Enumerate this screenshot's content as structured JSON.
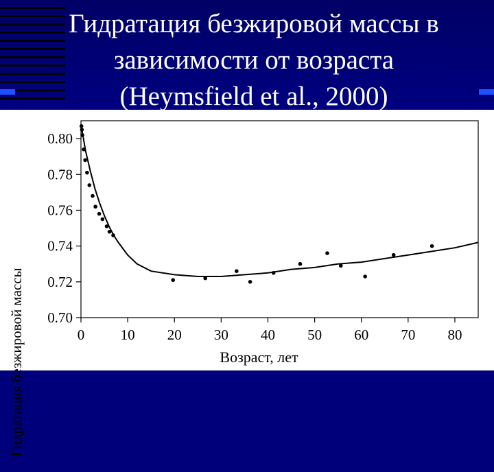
{
  "slide": {
    "title_lines": [
      "Гидратация безжировой массы в",
      "зависимости от возраста",
      "(Heymsfield et al., 2000)"
    ],
    "colors": {
      "background": "#00007a",
      "accent": "#1f4fff",
      "title_text": "#ffffff",
      "plot_background": "#ffffff",
      "ink": "#000000"
    }
  },
  "chart_data": {
    "type": "scatter",
    "xlabel": "Возраст, лет",
    "ylabel": "Гидратация безжировой массы",
    "xlim": [
      0,
      85
    ],
    "ylim": [
      0.7,
      0.81
    ],
    "x_ticks": [
      "0",
      "10",
      "20",
      "30",
      "40",
      "50",
      "60",
      "70",
      "80"
    ],
    "y_ticks": [
      "0.70",
      "0.72",
      "0.74",
      "0.76",
      "0.78",
      "0.80"
    ],
    "grid": false,
    "points": [
      {
        "x": 0.1,
        "y": 0.807
      },
      {
        "x": 0.2,
        "y": 0.805
      },
      {
        "x": 0.3,
        "y": 0.802
      },
      {
        "x": 0.6,
        "y": 0.794
      },
      {
        "x": 0.9,
        "y": 0.788
      },
      {
        "x": 1.3,
        "y": 0.781
      },
      {
        "x": 1.8,
        "y": 0.774
      },
      {
        "x": 2.5,
        "y": 0.768
      },
      {
        "x": 3.1,
        "y": 0.762
      },
      {
        "x": 3.9,
        "y": 0.758
      },
      {
        "x": 4.6,
        "y": 0.755
      },
      {
        "x": 5.5,
        "y": 0.751
      },
      {
        "x": 6.1,
        "y": 0.748
      },
      {
        "x": 6.9,
        "y": 0.746
      },
      {
        "x": 19.7,
        "y": 0.721
      },
      {
        "x": 26.6,
        "y": 0.722
      },
      {
        "x": 33.3,
        "y": 0.726
      },
      {
        "x": 36.2,
        "y": 0.72
      },
      {
        "x": 41.2,
        "y": 0.725
      },
      {
        "x": 46.9,
        "y": 0.73
      },
      {
        "x": 52.7,
        "y": 0.736
      },
      {
        "x": 55.6,
        "y": 0.729
      },
      {
        "x": 60.8,
        "y": 0.723
      },
      {
        "x": 66.9,
        "y": 0.735
      },
      {
        "x": 75.1,
        "y": 0.74
      }
    ],
    "fit_curve": {
      "x": [
        0,
        1,
        2,
        3,
        4,
        5,
        6,
        7,
        8,
        10,
        12,
        15,
        20,
        25,
        30,
        35,
        40,
        45,
        50,
        55,
        60,
        65,
        70,
        75,
        80,
        85
      ],
      "y": [
        0.808,
        0.793,
        0.782,
        0.772,
        0.764,
        0.757,
        0.751,
        0.746,
        0.742,
        0.735,
        0.73,
        0.726,
        0.724,
        0.723,
        0.723,
        0.724,
        0.725,
        0.727,
        0.728,
        0.73,
        0.731,
        0.733,
        0.735,
        0.737,
        0.739,
        0.742
      ]
    }
  }
}
